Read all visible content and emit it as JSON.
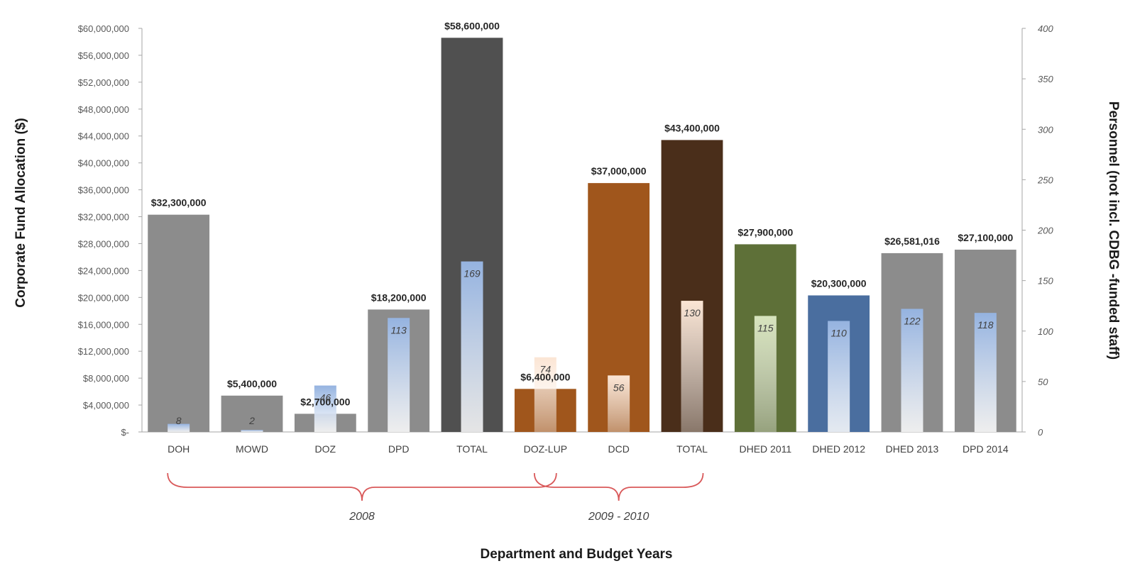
{
  "chart_data": {
    "type": "bar",
    "xlabel": "Department and Budget Years",
    "ylabel": "Corporate Fund Allocation ($)",
    "y2label": "Personnel (not incl. CDBG -funded staff)",
    "ylim": [
      0,
      60000000
    ],
    "y2lim": [
      0,
      400
    ],
    "y_ticks": [
      "$-",
      "$4,000,000",
      "$8,000,000",
      "$12,000,000",
      "$16,000,000",
      "$20,000,000",
      "$24,000,000",
      "$28,000,000",
      "$32,000,000",
      "$36,000,000",
      "$40,000,000",
      "$44,000,000",
      "$48,000,000",
      "$52,000,000",
      "$56,000,000",
      "$60,000,000"
    ],
    "y2_ticks": [
      "0",
      "50",
      "100",
      "150",
      "200",
      "250",
      "300",
      "350",
      "400"
    ],
    "grid": false,
    "categories": [
      "DOH",
      "MOWD",
      "DOZ",
      "DPD",
      "TOTAL",
      "DOZ-LUP",
      "DCD",
      "TOTAL",
      "DHED 2011",
      "DHED 2012",
      "DHED 2013",
      "DPD 2014"
    ],
    "series": [
      {
        "axis": "left",
        "values": [
          32300000,
          5400000,
          2700000,
          18200000,
          58600000,
          6400000,
          37000000,
          43400000,
          27900000,
          20300000,
          26581016,
          27100000
        ],
        "labels": [
          "$32,300,000",
          "$5,400,000",
          "$2,700,000",
          "$18,200,000",
          "$58,600,000",
          "$6,400,000",
          "$37,000,000",
          "$43,400,000",
          "$27,900,000",
          "$20,300,000",
          "$26,581,016",
          "$27,100,000"
        ],
        "colors": [
          "#8c8c8c",
          "#8c8c8c",
          "#8c8c8c",
          "#8c8c8c",
          "#505050",
          "#a0561c",
          "#a0561c",
          "#4a2e1a",
          "#5e7038",
          "#4a6e9f",
          "#8c8c8c",
          "#8c8c8c"
        ]
      },
      {
        "axis": "right",
        "values": [
          8,
          2,
          46,
          113,
          169,
          74,
          56,
          130,
          115,
          110,
          122,
          118
        ],
        "labels": [
          "8",
          "2",
          "46",
          "113",
          "169",
          "74",
          "56",
          "130",
          "115",
          "110",
          "122",
          "118"
        ],
        "colors": [
          "#95b3e0",
          "#95b3e0",
          "#95b3e0",
          "#95b3e0",
          "#95b3e0",
          "#fbe5d4",
          "#fbe5d4",
          "#fbe5d4",
          "#d7e4bd",
          "#95b3e0",
          "#95b3e0",
          "#95b3e0"
        ]
      }
    ],
    "groups": [
      {
        "label": "2008",
        "from": 0,
        "to": 5
      },
      {
        "label": "2009 - 2010",
        "from": 5,
        "to": 7
      }
    ],
    "brace_color": "#d9595a"
  }
}
